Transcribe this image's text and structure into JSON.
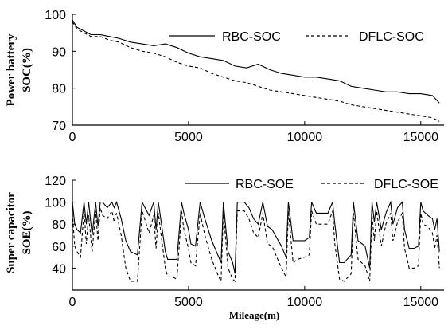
{
  "chart_data": [
    {
      "type": "line",
      "title": "",
      "xlabel": "",
      "ylabel": [
        "Power battery",
        "SOC(%)"
      ],
      "xlim": [
        0,
        16000
      ],
      "ylim": [
        70,
        100
      ],
      "xticks": [
        0,
        5000,
        10000,
        15000
      ],
      "yticks": [
        70,
        80,
        90,
        100
      ],
      "grid": false,
      "legend_position": "top-right",
      "series": [
        {
          "name": "RBC-SOC",
          "style": "solid",
          "color": "#000000",
          "x": [
            0,
            200,
            500,
            800,
            1200,
            1600,
            2000,
            2500,
            3000,
            3500,
            4000,
            4500,
            5000,
            5500,
            6000,
            6500,
            7000,
            7500,
            8000,
            8500,
            9000,
            9500,
            10000,
            10500,
            11000,
            11500,
            12000,
            12500,
            13000,
            13500,
            14000,
            14500,
            15000,
            15500,
            15800
          ],
          "y": [
            98.5,
            96.5,
            95.5,
            94.5,
            94.5,
            94,
            93.5,
            92.5,
            92,
            91.5,
            92,
            91,
            89.5,
            88.5,
            88,
            87.5,
            86,
            85.5,
            86.5,
            85,
            84,
            83.5,
            83,
            83,
            82.5,
            82,
            80.5,
            80,
            79.5,
            79,
            79,
            78.5,
            78.5,
            78,
            76
          ]
        },
        {
          "name": "DFLC-SOC",
          "style": "dashed",
          "color": "#000000",
          "x": [
            0,
            200,
            500,
            800,
            1200,
            1600,
            2000,
            2500,
            3000,
            3500,
            4000,
            4500,
            5000,
            5500,
            6000,
            6500,
            7000,
            7500,
            8000,
            8500,
            9000,
            9500,
            10000,
            10500,
            11000,
            11500,
            12000,
            12500,
            13000,
            13500,
            14000,
            14500,
            15000,
            15500,
            15800
          ],
          "y": [
            98,
            96,
            95,
            94,
            94,
            93,
            92.5,
            91,
            90,
            89.5,
            88.5,
            87,
            86,
            85.5,
            84,
            83,
            82,
            81.5,
            80.5,
            79.5,
            79,
            78.5,
            78,
            77.5,
            77,
            76.5,
            75.5,
            75,
            74.5,
            74,
            73.5,
            73,
            72.5,
            72,
            71
          ]
        }
      ]
    },
    {
      "type": "line",
      "title": "",
      "xlabel": "Mileage(m)",
      "ylabel": [
        "Super capacitor",
        "SOE(%)"
      ],
      "xlim": [
        0,
        16000
      ],
      "ylim": [
        20,
        120
      ],
      "xticks": [
        0,
        5000,
        10000,
        15000
      ],
      "yticks": [
        40,
        60,
        80,
        100,
        120
      ],
      "grid": false,
      "legend_position": "top-right",
      "series": [
        {
          "name": "RBC-SOE",
          "style": "solid",
          "color": "#000000",
          "x": [
            0,
            100,
            200,
            350,
            500,
            600,
            700,
            850,
            1000,
            1100,
            1200,
            1300,
            1500,
            1700,
            1800,
            1900,
            2100,
            2300,
            2500,
            2800,
            3000,
            3300,
            3500,
            3600,
            3700,
            4000,
            4100,
            4300,
            4500,
            4700,
            4800,
            5000,
            5100,
            5300,
            5500,
            5700,
            6000,
            6300,
            6400,
            6500,
            6700,
            6900,
            7000,
            7100,
            7400,
            7600,
            7800,
            8000,
            8200,
            8400,
            8600,
            9000,
            9200,
            9300,
            9500,
            9700,
            10000,
            10200,
            10300,
            10500,
            11000,
            11200,
            11300,
            11500,
            11700,
            12000,
            12100,
            12300,
            12600,
            12800,
            12900,
            13000,
            13100,
            13300,
            13500,
            13600,
            13700,
            13800,
            14000,
            14200,
            14300,
            14500,
            14700,
            14900,
            15000,
            15100,
            15300,
            15500,
            15600,
            15700,
            15800
          ],
          "y": [
            100,
            80,
            75,
            72,
            100,
            80,
            100,
            70,
            100,
            78,
            100,
            100,
            95,
            100,
            95,
            100,
            85,
            65,
            55,
            52,
            100,
            88,
            100,
            75,
            100,
            55,
            48,
            48,
            48,
            100,
            90,
            75,
            62,
            60,
            100,
            85,
            65,
            50,
            45,
            100,
            55,
            45,
            35,
            100,
            100,
            95,
            85,
            80,
            100,
            78,
            75,
            60,
            50,
            100,
            65,
            65,
            65,
            68,
            100,
            90,
            90,
            100,
            80,
            45,
            45,
            52,
            100,
            65,
            60,
            40,
            100,
            82,
            100,
            75,
            90,
            95,
            100,
            80,
            95,
            100,
            75,
            58,
            58,
            60,
            100,
            92,
            88,
            85,
            75,
            85,
            55
          ]
        },
        {
          "name": "DFLC-SOE",
          "style": "dashed",
          "color": "#000000",
          "x": [
            0,
            100,
            200,
            350,
            500,
            600,
            700,
            850,
            1000,
            1100,
            1200,
            1300,
            1500,
            1700,
            1800,
            1900,
            2100,
            2300,
            2500,
            2800,
            3000,
            3300,
            3500,
            3600,
            3700,
            4000,
            4100,
            4300,
            4500,
            4700,
            4800,
            5000,
            5100,
            5300,
            5500,
            5700,
            6000,
            6300,
            6400,
            6500,
            6700,
            6900,
            7000,
            7100,
            7400,
            7600,
            7800,
            8000,
            8200,
            8400,
            8600,
            9000,
            9200,
            9300,
            9500,
            9700,
            10000,
            10200,
            10300,
            10500,
            11000,
            11200,
            11300,
            11500,
            11700,
            12000,
            12100,
            12300,
            12600,
            12800,
            12900,
            13000,
            13100,
            13300,
            13500,
            13600,
            13700,
            13800,
            14000,
            14200,
            14300,
            14500,
            14700,
            14900,
            15000,
            15100,
            15300,
            15500,
            15600,
            15700,
            15800
          ],
          "y": [
            90,
            60,
            55,
            50,
            92,
            62,
            88,
            55,
            92,
            65,
            95,
            88,
            85,
            92,
            82,
            90,
            70,
            40,
            28,
            28,
            92,
            72,
            88,
            58,
            90,
            40,
            32,
            32,
            30,
            92,
            75,
            58,
            45,
            42,
            90,
            70,
            48,
            32,
            28,
            92,
            40,
            30,
            28,
            92,
            92,
            85,
            72,
            68,
            90,
            62,
            60,
            40,
            32,
            92,
            45,
            48,
            50,
            52,
            92,
            80,
            80,
            92,
            62,
            30,
            28,
            35,
            90,
            48,
            42,
            28,
            88,
            65,
            92,
            60,
            80,
            85,
            90,
            65,
            82,
            90,
            58,
            40,
            40,
            42,
            90,
            80,
            78,
            72,
            58,
            70,
            40
          ]
        }
      ]
    }
  ]
}
